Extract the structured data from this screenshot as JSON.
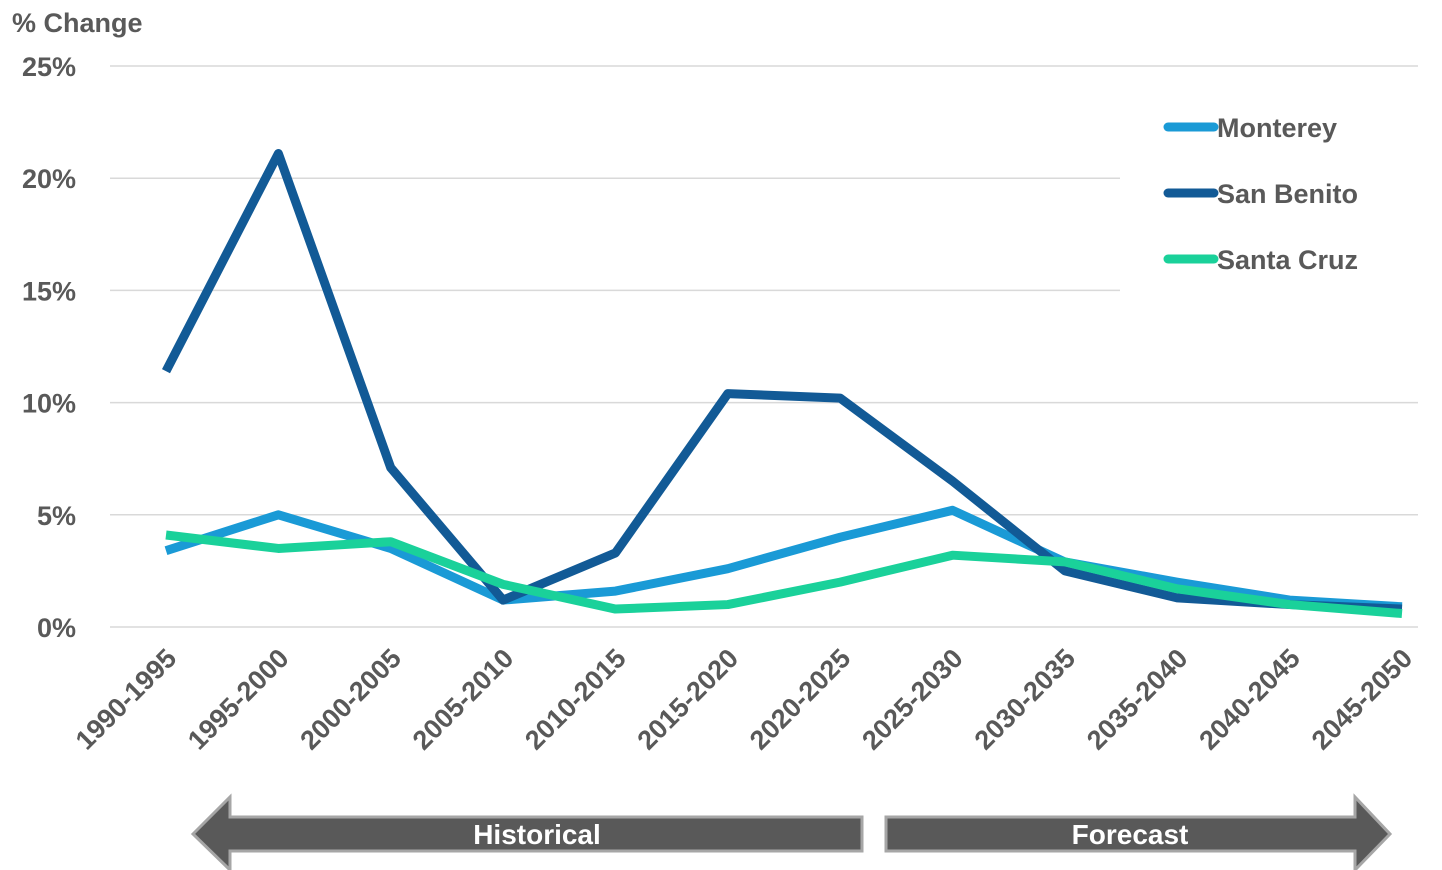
{
  "chart_data": {
    "type": "line",
    "y_axis_label": "% Change",
    "categories": [
      "1990-1995",
      "1995-2000",
      "2000-2005",
      "2005-2010",
      "2010-2015",
      "2015-2020",
      "2020-2025",
      "2025-2030",
      "2030-2035",
      "2035-2040",
      "2040-2045",
      "2045-2050"
    ],
    "series": [
      {
        "name": "Monterey",
        "color": "#1a9ad6",
        "values": [
          3.4,
          5.0,
          3.5,
          1.2,
          1.6,
          2.6,
          4.0,
          5.2,
          2.9,
          2.0,
          1.2,
          0.9
        ]
      },
      {
        "name": "San Benito",
        "color": "#125a96",
        "values": [
          11.4,
          21.1,
          7.1,
          1.2,
          3.3,
          10.4,
          10.2,
          6.5,
          2.5,
          1.3,
          1.0,
          0.8
        ]
      },
      {
        "name": "Santa Cruz",
        "color": "#1ad19a",
        "values": [
          4.1,
          3.5,
          3.8,
          1.9,
          0.8,
          1.0,
          2.0,
          3.2,
          2.9,
          1.7,
          1.0,
          0.6
        ]
      }
    ],
    "ylim": [
      0,
      25
    ],
    "yticks": [
      {
        "value": 0,
        "label": "0%"
      },
      {
        "value": 5,
        "label": "5%"
      },
      {
        "value": 10,
        "label": "10%"
      },
      {
        "value": 15,
        "label": "15%"
      },
      {
        "value": 20,
        "label": "20%"
      },
      {
        "value": 25,
        "label": "25%"
      }
    ],
    "grid": true,
    "legend": "upper right",
    "annotations": [
      "Historical",
      "Forecast"
    ]
  }
}
